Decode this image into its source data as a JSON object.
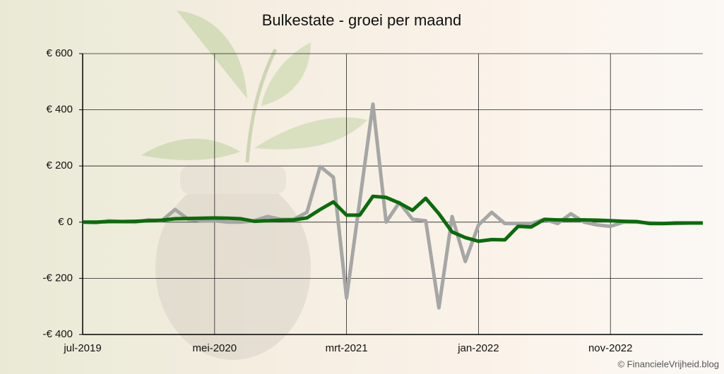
{
  "chart_data": {
    "type": "line",
    "title": "Bulkestate - groei per maand",
    "source": "© FinancieleVrijheid.blog",
    "categories": [
      "jul-2019",
      null,
      null,
      null,
      null,
      null,
      null,
      null,
      null,
      null,
      "mei-2020",
      null,
      null,
      null,
      null,
      null,
      null,
      null,
      null,
      null,
      "mrt-2021",
      null,
      null,
      null,
      null,
      null,
      null,
      null,
      null,
      null,
      "jan-2022",
      null,
      null,
      null,
      null,
      null,
      null,
      null,
      null,
      null,
      "nov-2022",
      null,
      null,
      null,
      null,
      null,
      null,
      null
    ],
    "series": [
      {
        "color": "#a6a6a6",
        "values": [
          0,
          -2,
          5,
          2,
          0,
          8,
          5,
          45,
          10,
          5,
          5,
          0,
          0,
          5,
          20,
          10,
          10,
          35,
          198,
          160,
          -270,
          75,
          420,
          0,
          70,
          10,
          5,
          -305,
          20,
          -140,
          -10,
          35,
          -5,
          -5,
          -5,
          10,
          -5,
          30,
          0,
          -10,
          -15,
          0,
          0,
          -3,
          -5,
          -5,
          -3,
          -3
        ]
      },
      {
        "color": "#0b6b0b",
        "values": [
          0,
          0,
          2,
          2,
          3,
          5,
          7,
          12,
          13,
          14,
          15,
          14,
          12,
          3,
          5,
          7,
          8,
          15,
          45,
          72,
          25,
          25,
          92,
          88,
          68,
          42,
          85,
          30,
          -35,
          -55,
          -68,
          -62,
          -63,
          -15,
          -17,
          10,
          8,
          8,
          8,
          7,
          5,
          3,
          2,
          -5,
          -5,
          -3,
          -3,
          -3
        ]
      }
    ],
    "ylim": [
      -400,
      600
    ],
    "yticks": [
      {
        "value": -400,
        "label": "-€ 400"
      },
      {
        "value": -200,
        "label": "-€ 200"
      },
      {
        "value": 0,
        "label": "€ 0"
      },
      {
        "value": 200,
        "label": "€ 200"
      },
      {
        "value": 400,
        "label": "€ 400"
      },
      {
        "value": 600,
        "label": "€ 600"
      }
    ],
    "grid": true
  }
}
